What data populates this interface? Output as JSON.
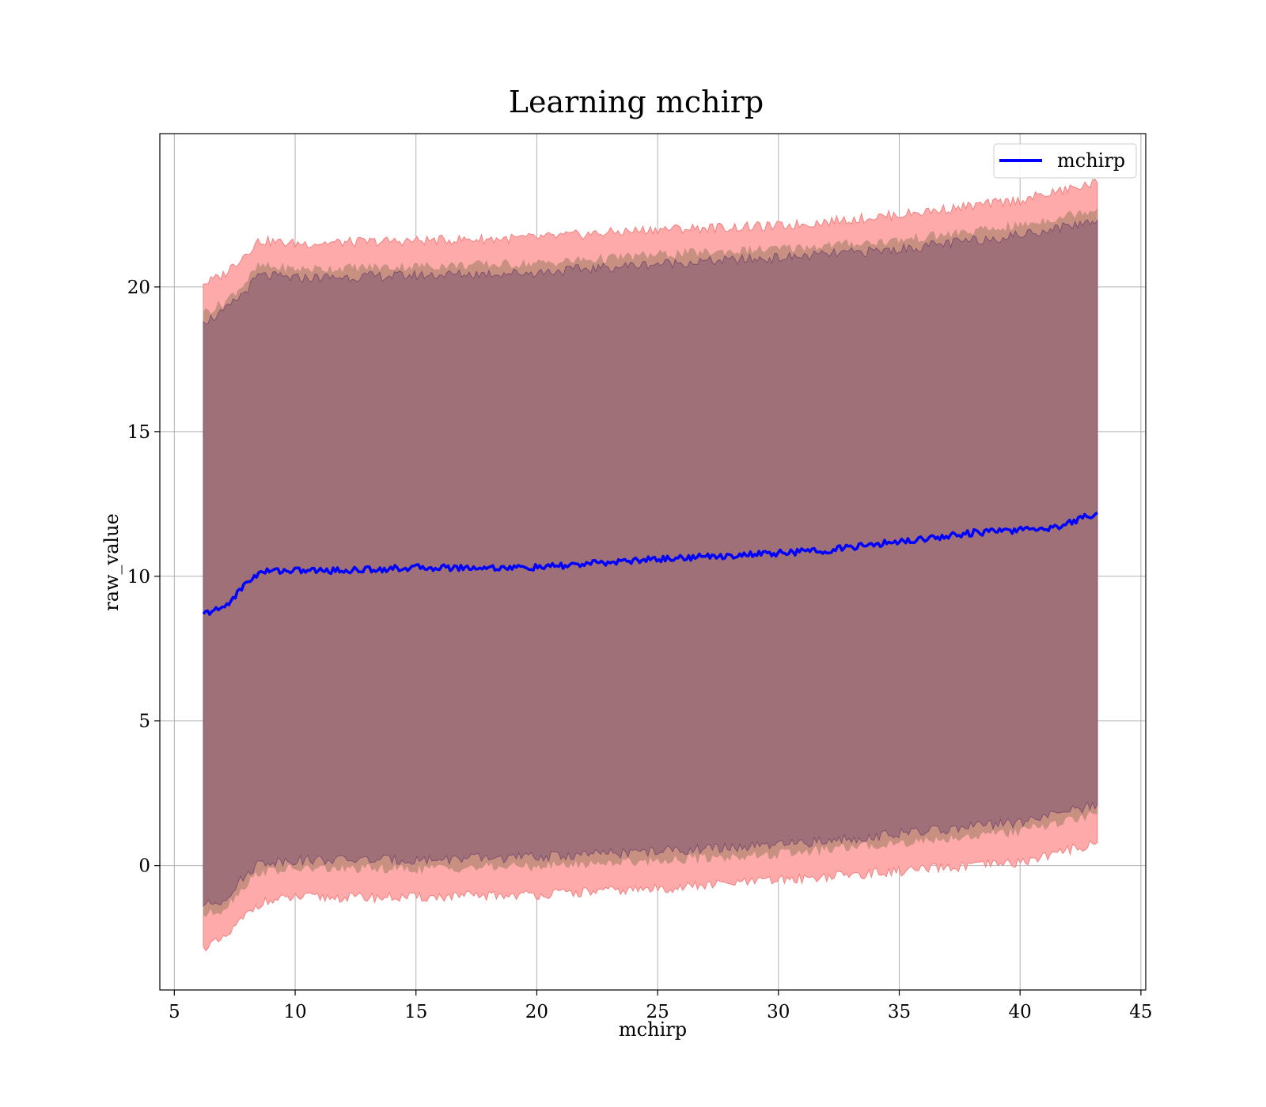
{
  "chart_data": {
    "type": "line",
    "title": "Learning mchirp",
    "xlabel": "mchirp",
    "ylabel": "raw_value",
    "xlim": [
      4.4,
      45.2
    ],
    "ylim": [
      -4.3,
      25.3
    ],
    "xticks": [
      5,
      10,
      15,
      20,
      25,
      30,
      35,
      40,
      45
    ],
    "yticks": [
      0,
      5,
      10,
      15,
      20
    ],
    "grid": true,
    "legend_position": "top-right",
    "colors": {
      "line": "#0000ff",
      "outer_band": "#ffaaaa",
      "outer_band_edge": "#f08080",
      "middle_band": "#c89080",
      "inner_band": "#a07078",
      "inner_band_edge": "#7f5070",
      "grid": "#b0b0b0"
    },
    "series": [
      {
        "name": "mchirp",
        "x": [
          6.2,
          6.6,
          7.0,
          7.5,
          8.0,
          8.5,
          9.0,
          10.0,
          12.0,
          15.0,
          20.0,
          25.0,
          30.0,
          32.0,
          35.0,
          38.0,
          40.0,
          41.5,
          43.2
        ],
        "y": [
          8.7,
          8.8,
          8.9,
          9.3,
          9.8,
          10.1,
          10.2,
          10.2,
          10.2,
          10.3,
          10.3,
          10.6,
          10.8,
          10.9,
          11.2,
          11.5,
          11.6,
          11.7,
          12.2
        ]
      }
    ],
    "bands": [
      {
        "level": "outer",
        "x": [
          6.2,
          7.0,
          8.0,
          8.5,
          10.0,
          15.0,
          20.0,
          25.0,
          30.0,
          35.0,
          40.0,
          43.2
        ],
        "upper": [
          20.1,
          20.4,
          21.2,
          21.6,
          21.5,
          21.6,
          21.7,
          22.0,
          22.1,
          22.5,
          23.0,
          23.6
        ],
        "lower": [
          -2.8,
          -2.6,
          -1.7,
          -1.3,
          -1.1,
          -1.1,
          -1.0,
          -0.8,
          -0.5,
          -0.2,
          0.1,
          0.8
        ]
      },
      {
        "level": "middle",
        "x": [
          6.2,
          7.0,
          8.0,
          8.5,
          10.0,
          15.0,
          20.0,
          25.0,
          30.0,
          35.0,
          40.0,
          43.2
        ],
        "upper": [
          19.1,
          19.4,
          20.2,
          20.7,
          20.6,
          20.7,
          20.8,
          21.1,
          21.3,
          21.6,
          22.1,
          22.7
        ],
        "lower": [
          -1.7,
          -1.5,
          -0.6,
          -0.2,
          -0.1,
          -0.1,
          0.0,
          0.2,
          0.4,
          0.8,
          1.2,
          1.8
        ]
      },
      {
        "level": "inner",
        "x": [
          6.2,
          7.0,
          8.0,
          8.5,
          10.0,
          15.0,
          20.0,
          25.0,
          30.0,
          35.0,
          40.0,
          43.2
        ],
        "upper": [
          18.8,
          19.1,
          19.9,
          20.4,
          20.3,
          20.4,
          20.5,
          20.8,
          21.0,
          21.3,
          21.8,
          22.3
        ],
        "lower": [
          -1.4,
          -1.2,
          -0.3,
          0.1,
          0.2,
          0.2,
          0.3,
          0.5,
          0.7,
          1.1,
          1.5,
          2.1
        ]
      }
    ]
  }
}
